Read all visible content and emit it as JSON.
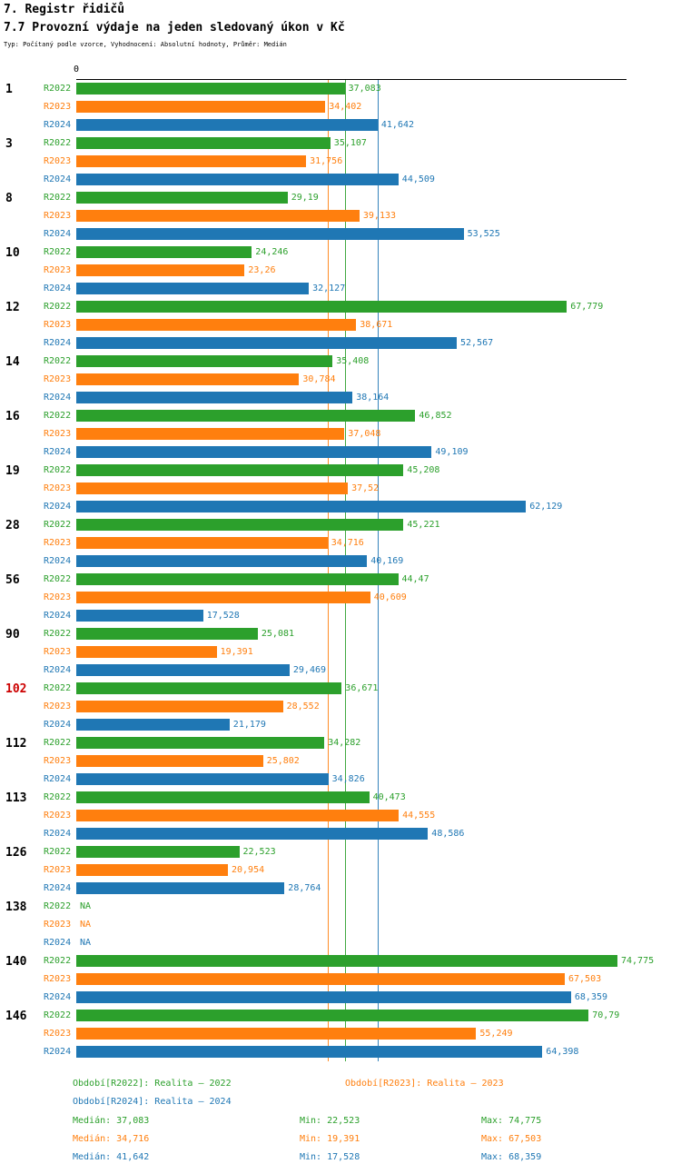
{
  "header": {
    "title": "7. Registr řidičů",
    "subtitle": "7.7 Provozní výdaje na jeden sledovaný úkon v Kč",
    "type_line": "Typ: Počítaný podle vzorce, Vyhodnocení: Absolutní hodnoty, Průměr: Medián"
  },
  "axis": {
    "zero_label": "0"
  },
  "colors": {
    "r2022": "#2ca02c",
    "r2023": "#ff7f0e",
    "r2024": "#1f77b4",
    "highlight_id": "#cc0000",
    "axis": "#000000"
  },
  "chart_data": {
    "type": "bar",
    "orientation": "horizontal",
    "title": "7.7 Provozní výdaje na jeden sledovaný úkon v Kč",
    "xlabel": "",
    "ylabel": "",
    "xlim": [
      0,
      75
    ],
    "grid": false,
    "legend_position": "bottom",
    "series_names": [
      "R2022",
      "R2023",
      "R2024"
    ],
    "max_value": 74.775,
    "reference_lines": [
      {
        "series": "R2023",
        "value": 34.716,
        "color_key": "r2023"
      },
      {
        "series": "R2022",
        "value": 37.083,
        "color_key": "r2022"
      },
      {
        "series": "R2024",
        "value": 41.642,
        "color_key": "r2024"
      }
    ],
    "groups": [
      {
        "id": "1",
        "values": [
          37.083,
          34.402,
          41.642
        ],
        "labels": [
          "37,083",
          "34,402",
          "41,642"
        ]
      },
      {
        "id": "3",
        "values": [
          35.107,
          31.756,
          44.509
        ],
        "labels": [
          "35,107",
          "31,756",
          "44,509"
        ]
      },
      {
        "id": "8",
        "values": [
          29.19,
          39.133,
          53.525
        ],
        "labels": [
          "29,19",
          "39,133",
          "53,525"
        ]
      },
      {
        "id": "10",
        "values": [
          24.246,
          23.26,
          32.127
        ],
        "labels": [
          "24,246",
          "23,26",
          "32,127"
        ]
      },
      {
        "id": "12",
        "values": [
          67.779,
          38.671,
          52.567
        ],
        "labels": [
          "67,779",
          "38,671",
          "52,567"
        ]
      },
      {
        "id": "14",
        "values": [
          35.408,
          30.784,
          38.164
        ],
        "labels": [
          "35,408",
          "30,784",
          "38,164"
        ]
      },
      {
        "id": "16",
        "values": [
          46.852,
          37.048,
          49.109
        ],
        "labels": [
          "46,852",
          "37,048",
          "49,109"
        ]
      },
      {
        "id": "19",
        "values": [
          45.208,
          37.52,
          62.129
        ],
        "labels": [
          "45,208",
          "37,52",
          "62,129"
        ]
      },
      {
        "id": "28",
        "values": [
          45.221,
          34.716,
          40.169
        ],
        "labels": [
          "45,221",
          "34,716",
          "40,169"
        ]
      },
      {
        "id": "56",
        "values": [
          44.47,
          40.609,
          17.528
        ],
        "labels": [
          "44,47",
          "40,609",
          "17,528"
        ]
      },
      {
        "id": "90",
        "values": [
          25.081,
          19.391,
          29.469
        ],
        "labels": [
          "25,081",
          "19,391",
          "29,469"
        ]
      },
      {
        "id": "102",
        "highlight": true,
        "values": [
          36.671,
          28.552,
          21.179
        ],
        "labels": [
          "36,671",
          "28,552",
          "21,179"
        ]
      },
      {
        "id": "112",
        "values": [
          34.282,
          25.802,
          34.826
        ],
        "labels": [
          "34,282",
          "25,802",
          "34,826"
        ]
      },
      {
        "id": "113",
        "values": [
          40.473,
          44.555,
          48.586
        ],
        "labels": [
          "40,473",
          "44,555",
          "48,586"
        ]
      },
      {
        "id": "126",
        "values": [
          22.523,
          20.954,
          28.764
        ],
        "labels": [
          "22,523",
          "20,954",
          "28,764"
        ]
      },
      {
        "id": "138",
        "values": [
          null,
          null,
          null
        ],
        "labels": [
          "NA",
          "NA",
          "NA"
        ]
      },
      {
        "id": "140",
        "values": [
          74.775,
          67.503,
          68.359
        ],
        "labels": [
          "74,775",
          "67,503",
          "68,359"
        ]
      },
      {
        "id": "146",
        "values": [
          70.79,
          55.249,
          64.398
        ],
        "labels": [
          "70,79",
          "55,249",
          "64,398"
        ]
      }
    ]
  },
  "legend": {
    "r2022": "Období[R2022]: Realita – 2022",
    "r2023": "Období[R2023]: Realita – 2023",
    "r2024": "Období[R2024]: Realita – 2024"
  },
  "stats": {
    "r2022": {
      "median": "Medián: 37,083",
      "min": "Min: 22,523",
      "max": "Max: 74,775"
    },
    "r2023": {
      "median": "Medián: 34,716",
      "min": "Min: 19,391",
      "max": "Max: 67,503"
    },
    "r2024": {
      "median": "Medián: 41,642",
      "min": "Min: 17,528",
      "max": "Max: 68,359"
    }
  }
}
